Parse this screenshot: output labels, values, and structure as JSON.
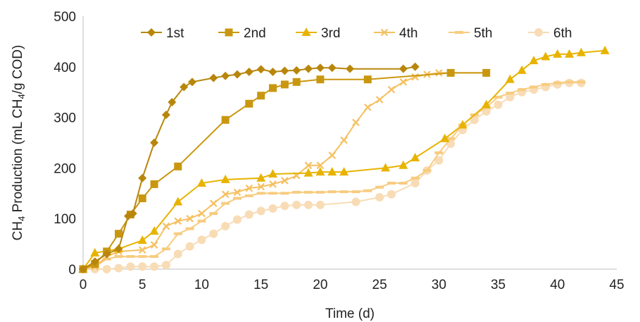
{
  "chart_data": {
    "type": "line",
    "xlabel": "Time (d)",
    "ylabel_main": "CH",
    "ylabel_sub": "4",
    "ylabel_rest": " Production (mL CH",
    "ylabel_sub2": "4",
    "ylabel_end": "/g COD)",
    "xlim": [
      0,
      45
    ],
    "ylim": [
      0,
      500
    ],
    "xticks": [
      0,
      5,
      10,
      15,
      20,
      25,
      30,
      35,
      40,
      45
    ],
    "yticks": [
      0,
      100,
      200,
      300,
      400,
      500
    ],
    "grid": false,
    "legend_position": "top",
    "series": [
      {
        "name": "1st",
        "color": "#b8860b",
        "marker": "diamond",
        "x": [
          0,
          1,
          2,
          3,
          3.8,
          4.2,
          5,
          6,
          7,
          7.5,
          8.5,
          9.2,
          11,
          12,
          13,
          14,
          15,
          16,
          17,
          18,
          19,
          20,
          21,
          22.5,
          27,
          28
        ],
        "y": [
          0,
          15,
          30,
          40,
          105,
          110,
          180,
          250,
          305,
          330,
          360,
          370,
          378,
          382,
          385,
          390,
          395,
          390,
          392,
          393,
          396,
          398,
          398,
          396,
          396,
          400
        ]
      },
      {
        "name": "2nd",
        "color": "#c9970f",
        "marker": "square",
        "x": [
          0,
          1,
          2,
          3,
          4,
          5,
          6,
          8,
          12,
          14,
          15,
          16,
          17,
          18,
          20,
          24,
          31,
          34
        ],
        "y": [
          0,
          10,
          35,
          70,
          108,
          140,
          168,
          203,
          295,
          327,
          343,
          358,
          365,
          370,
          375,
          375,
          388,
          388
        ]
      },
      {
        "name": "3rd",
        "color": "#e8b300",
        "marker": "triangle",
        "x": [
          0,
          1,
          3,
          5,
          6,
          8,
          10,
          12,
          15,
          16,
          19,
          20,
          21,
          22,
          25.5,
          27,
          28,
          30.5,
          32,
          34,
          36,
          37,
          38,
          39,
          40,
          41,
          42,
          44
        ],
        "y": [
          0,
          32,
          40,
          57,
          75,
          133,
          170,
          177,
          180,
          188,
          190,
          192,
          192,
          192,
          200,
          205,
          220,
          258,
          285,
          325,
          375,
          393,
          412,
          420,
          425,
          425,
          428,
          432
        ]
      },
      {
        "name": "4th",
        "color": "#f5c060",
        "marker": "cross",
        "x": [
          0,
          1,
          2,
          3,
          5,
          6,
          7,
          8,
          9,
          10,
          11,
          12,
          13,
          14,
          15,
          16,
          17,
          18,
          19,
          20,
          21,
          22,
          23,
          24,
          25,
          26,
          27,
          28,
          29,
          30,
          31,
          34
        ],
        "y": [
          0,
          5,
          25,
          35,
          38,
          48,
          85,
          95,
          100,
          110,
          130,
          148,
          152,
          160,
          163,
          168,
          175,
          185,
          205,
          205,
          225,
          255,
          290,
          320,
          335,
          355,
          370,
          380,
          385,
          388,
          388,
          388
        ]
      },
      {
        "name": "5th",
        "color": "#f7cc80",
        "marker": "dash",
        "x": [
          0,
          1,
          2,
          3,
          4,
          5,
          6,
          7,
          8,
          9,
          10,
          11,
          12,
          13,
          14,
          15,
          16,
          17,
          18,
          19,
          20,
          21,
          22,
          23,
          24,
          25,
          26,
          27,
          28,
          29,
          30,
          31,
          32,
          33,
          34,
          35,
          36,
          37,
          38,
          39,
          40,
          41,
          42
        ],
        "y": [
          0,
          5,
          20,
          25,
          25,
          25,
          25,
          40,
          70,
          80,
          95,
          110,
          130,
          140,
          145,
          150,
          150,
          150,
          152,
          152,
          152,
          153,
          153,
          153,
          155,
          162,
          170,
          170,
          180,
          195,
          230,
          258,
          285,
          305,
          320,
          340,
          348,
          355,
          360,
          365,
          368,
          370,
          370
        ]
      },
      {
        "name": "6th",
        "color": "#f8dcb5",
        "marker": "circle",
        "x": [
          0,
          1,
          2,
          3,
          4,
          5,
          6,
          7,
          8,
          9,
          10,
          11,
          12,
          13,
          14,
          15,
          16,
          17,
          18,
          19,
          20,
          23,
          25,
          26,
          28,
          29,
          30,
          31,
          32,
          33,
          34,
          35,
          36,
          37,
          38,
          39,
          40,
          41,
          42
        ],
        "y": [
          0,
          0,
          0,
          2,
          5,
          5,
          5,
          8,
          30,
          45,
          58,
          70,
          85,
          98,
          108,
          115,
          120,
          125,
          127,
          127,
          127,
          133,
          142,
          148,
          170,
          195,
          215,
          248,
          275,
          295,
          312,
          325,
          340,
          350,
          355,
          360,
          365,
          368,
          368
        ]
      }
    ]
  }
}
